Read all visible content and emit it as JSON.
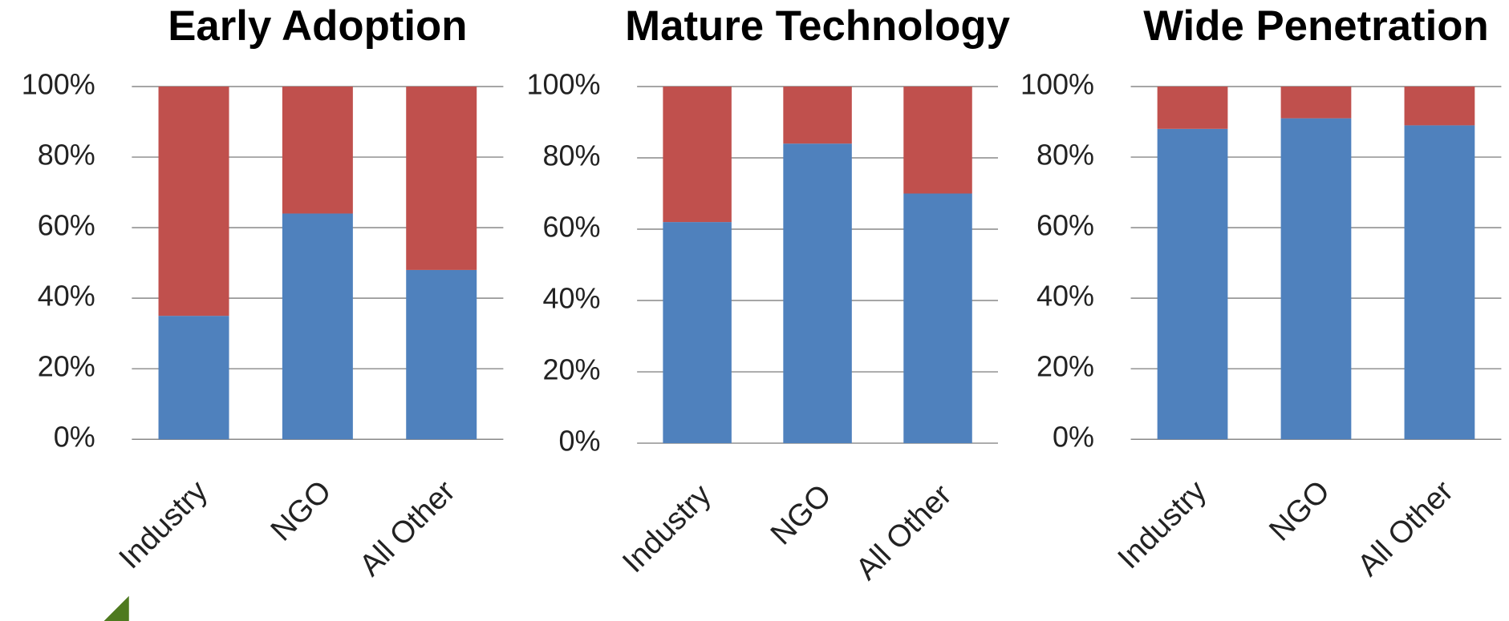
{
  "chart_data": [
    {
      "type": "bar",
      "stacked": true,
      "title": "Early Adoption",
      "categories": [
        "Industry",
        "NGO",
        "All Other"
      ],
      "series": [
        {
          "color": "#4f81bd",
          "values": [
            35,
            64,
            48
          ]
        },
        {
          "color": "#c0504d",
          "values": [
            65,
            36,
            52
          ]
        }
      ],
      "ylim": [
        0,
        100
      ],
      "yticks": [
        {
          "value": 0,
          "label": "0%"
        },
        {
          "value": 20,
          "label": "20%"
        },
        {
          "value": 40,
          "label": "40%"
        },
        {
          "value": 60,
          "label": "60%"
        },
        {
          "value": 80,
          "label": "80%"
        },
        {
          "value": 100,
          "label": "100%"
        }
      ],
      "grid": true
    },
    {
      "type": "bar",
      "stacked": true,
      "title": "Mature Technology",
      "categories": [
        "Industry",
        "NGO",
        "All Other"
      ],
      "series": [
        {
          "color": "#4f81bd",
          "values": [
            62,
            84,
            70
          ]
        },
        {
          "color": "#c0504d",
          "values": [
            38,
            16,
            30
          ]
        }
      ],
      "ylim": [
        0,
        100
      ],
      "yticks": [
        {
          "value": 0,
          "label": "0%"
        },
        {
          "value": 20,
          "label": "20%"
        },
        {
          "value": 40,
          "label": "40%"
        },
        {
          "value": 60,
          "label": "60%"
        },
        {
          "value": 80,
          "label": "80%"
        },
        {
          "value": 100,
          "label": "100%"
        }
      ],
      "grid": true
    },
    {
      "type": "bar",
      "stacked": true,
      "title": "Wide Penetration",
      "categories": [
        "Industry",
        "NGO",
        "All Other"
      ],
      "series": [
        {
          "color": "#4f81bd",
          "values": [
            88,
            91,
            89
          ]
        },
        {
          "color": "#c0504d",
          "values": [
            12,
            9,
            11
          ]
        }
      ],
      "ylim": [
        0,
        100
      ],
      "yticks": [
        {
          "value": 0,
          "label": "0%"
        },
        {
          "value": 20,
          "label": "20%"
        },
        {
          "value": 40,
          "label": "40%"
        },
        {
          "value": 60,
          "label": "60%"
        },
        {
          "value": 80,
          "label": "80%"
        },
        {
          "value": 100,
          "label": "100%"
        }
      ],
      "grid": true
    }
  ]
}
